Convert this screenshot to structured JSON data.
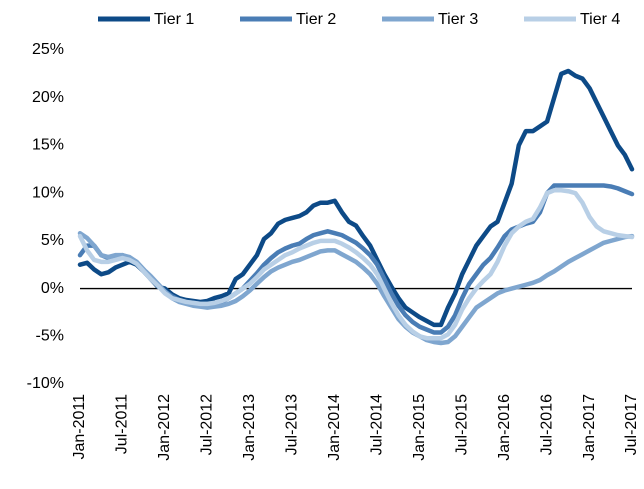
{
  "chart_data": {
    "type": "line",
    "categories": [
      "Jan-2011",
      null,
      null,
      null,
      null,
      null,
      "Jul-2011",
      null,
      null,
      null,
      null,
      null,
      "Jan-2012",
      null,
      null,
      null,
      null,
      null,
      "Jul-2012",
      null,
      null,
      null,
      null,
      null,
      "Jan-2013",
      null,
      null,
      null,
      null,
      null,
      "Jul-2013",
      null,
      null,
      null,
      null,
      null,
      "Jan-2014",
      null,
      null,
      null,
      null,
      null,
      "Jul-2014",
      null,
      null,
      null,
      null,
      null,
      "Jan-2015",
      null,
      null,
      null,
      null,
      null,
      "Jul-2015",
      null,
      null,
      null,
      null,
      null,
      "Jan-2016",
      null,
      null,
      null,
      null,
      null,
      "Jul-2016",
      null,
      null,
      null,
      null,
      null,
      "Jan-2017",
      null,
      null,
      null,
      null,
      null,
      "Jul-2017"
    ],
    "series": [
      {
        "name": "Tier 1",
        "color": "#0d4a87",
        "values": [
          2.5,
          2.7,
          2.0,
          1.5,
          1.7,
          2.2,
          2.5,
          2.8,
          2.5,
          1.8,
          1.0,
          0.2,
          0,
          -0.6,
          -1.0,
          -1.2,
          -1.3,
          -1.4,
          -1.3,
          -1.0,
          -0.8,
          -0.5,
          1.0,
          1.5,
          2.5,
          3.5,
          5.2,
          5.8,
          6.8,
          7.2,
          7.4,
          7.6,
          8.0,
          8.7,
          9.0,
          9.0,
          9.2,
          8.0,
          7.0,
          6.6,
          5.5,
          4.5,
          3.0,
          1.5,
          0.2,
          -1.0,
          -2.0,
          -2.5,
          -3.0,
          -3.4,
          -3.8,
          -3.8,
          -2.0,
          -0.5,
          1.5,
          3.0,
          4.5,
          5.5,
          6.5,
          7.0,
          9.0,
          11.0,
          15.0,
          16.5,
          16.5,
          17.0,
          17.5,
          20.0,
          22.5,
          22.8,
          22.3,
          22.0,
          21.0,
          19.5,
          18.0,
          16.5,
          15.0,
          14.0,
          12.5
        ]
      },
      {
        "name": "Tier 2",
        "color": "#4a7db5",
        "values": [
          3.5,
          4.5,
          4.5,
          3.5,
          3.2,
          3.3,
          3.5,
          3.2,
          2.8,
          2.0,
          1.0,
          0.3,
          -0.3,
          -0.8,
          -1.2,
          -1.4,
          -1.5,
          -1.6,
          -1.6,
          -1.6,
          -1.4,
          -1.0,
          -0.5,
          0.0,
          0.8,
          1.6,
          2.5,
          3.2,
          3.8,
          4.2,
          4.5,
          4.7,
          5.2,
          5.6,
          5.8,
          6.0,
          5.8,
          5.6,
          5.2,
          4.8,
          4.2,
          3.5,
          2.5,
          1.0,
          -0.5,
          -1.8,
          -2.8,
          -3.5,
          -4.0,
          -4.3,
          -4.6,
          -4.6,
          -4.0,
          -2.8,
          -1.0,
          0.5,
          1.5,
          2.5,
          3.2,
          4.3,
          5.5,
          6.2,
          6.5,
          6.8,
          7.0,
          8.0,
          10.0,
          10.8,
          10.8,
          10.8,
          10.8,
          10.8,
          10.8,
          10.8,
          10.8,
          10.7,
          10.5,
          10.2,
          9.9
        ]
      },
      {
        "name": "Tier 3",
        "color": "#7fa6cf",
        "values": [
          5.8,
          5.3,
          4.5,
          3.5,
          3.3,
          3.5,
          3.5,
          3.3,
          2.8,
          2.0,
          1.3,
          0.5,
          -0.3,
          -1.0,
          -1.4,
          -1.6,
          -1.8,
          -1.9,
          -2.0,
          -1.9,
          -1.8,
          -1.6,
          -1.3,
          -0.8,
          -0.2,
          0.5,
          1.2,
          1.8,
          2.2,
          2.5,
          2.8,
          3.0,
          3.3,
          3.6,
          3.9,
          4.0,
          4.0,
          3.6,
          3.2,
          2.8,
          2.2,
          1.5,
          0.5,
          -0.8,
          -2.0,
          -3.2,
          -4.0,
          -4.6,
          -5.0,
          -5.4,
          -5.6,
          -5.7,
          -5.6,
          -5.0,
          -4.0,
          -3.0,
          -2.0,
          -1.5,
          -1.0,
          -0.5,
          -0.2,
          0.0,
          0.2,
          0.4,
          0.6,
          0.9,
          1.4,
          1.8,
          2.3,
          2.8,
          3.2,
          3.6,
          4.0,
          4.4,
          4.8,
          5.0,
          5.2,
          5.4,
          5.5
        ]
      },
      {
        "name": "Tier 4",
        "color": "#b8cfe6",
        "values": [
          5.5,
          4.0,
          3.0,
          2.8,
          2.8,
          3.0,
          3.2,
          3.0,
          2.6,
          1.8,
          1.0,
          0.3,
          -0.5,
          -1.0,
          -1.2,
          -1.4,
          -1.5,
          -1.6,
          -1.6,
          -1.5,
          -1.3,
          -1.0,
          -0.5,
          0.0,
          0.5,
          1.2,
          2.0,
          2.5,
          3.0,
          3.5,
          3.8,
          4.2,
          4.5,
          4.8,
          5.0,
          5.0,
          5.0,
          4.7,
          4.3,
          3.8,
          3.2,
          2.5,
          1.5,
          0.0,
          -1.5,
          -2.8,
          -3.8,
          -4.5,
          -5.0,
          -5.2,
          -5.2,
          -5.2,
          -4.8,
          -3.8,
          -2.2,
          -1.0,
          0.0,
          0.8,
          1.5,
          2.8,
          4.5,
          5.8,
          6.5,
          7.0,
          7.3,
          8.5,
          10.0,
          10.3,
          10.3,
          10.2,
          10.0,
          9.0,
          7.5,
          6.5,
          6.0,
          5.8,
          5.6,
          5.5,
          5.4
        ]
      }
    ],
    "ylim": [
      -10,
      25
    ],
    "yticks": [
      {
        "value": -10,
        "label": "-10%"
      },
      {
        "value": -5,
        "label": "-5%"
      },
      {
        "value": 0,
        "label": "0%"
      },
      {
        "value": 5,
        "label": "5%"
      },
      {
        "value": 10,
        "label": "10%"
      },
      {
        "value": 15,
        "label": "15%"
      },
      {
        "value": 20,
        "label": "20%"
      },
      {
        "value": 25,
        "label": "25%"
      }
    ],
    "legend": "top"
  }
}
